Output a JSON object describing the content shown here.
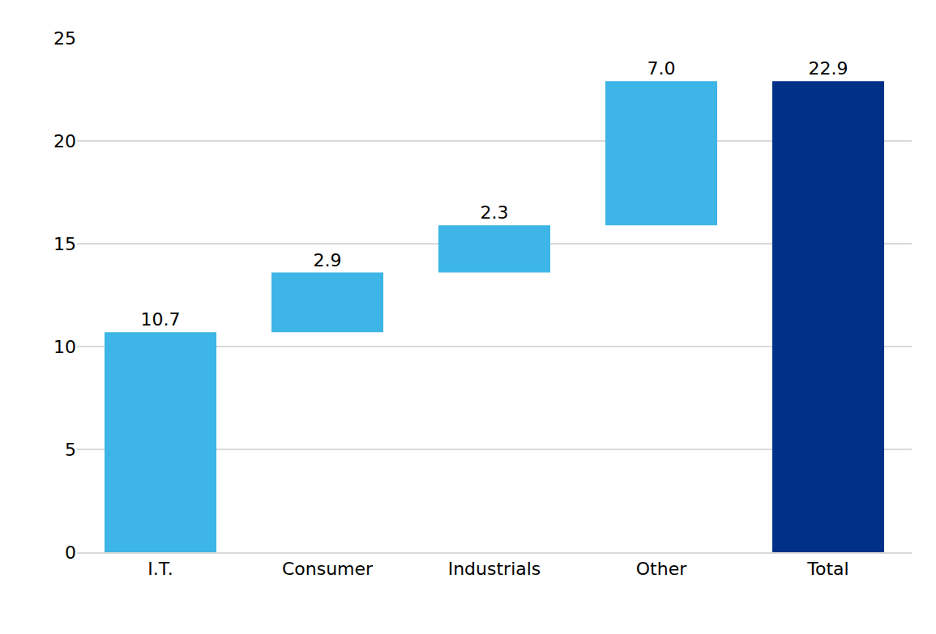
{
  "chart_data": {
    "type": "waterfall",
    "categories": [
      "I.T.",
      "Consumer",
      "Industrials",
      "Other",
      "Total"
    ],
    "values": [
      10.7,
      2.9,
      2.3,
      7.0,
      22.9
    ],
    "value_labels": [
      "10.7",
      "2.9",
      "2.3",
      "7.0",
      "22.9"
    ],
    "colors": [
      "#3db5e6",
      "#3db5e6",
      "#3db5e6",
      "#3db5e6",
      "#003087"
    ],
    "ylim": [
      0,
      25
    ],
    "yticks": [
      0,
      5,
      10,
      15,
      20,
      25
    ],
    "grid": true,
    "data_labels": true
  }
}
